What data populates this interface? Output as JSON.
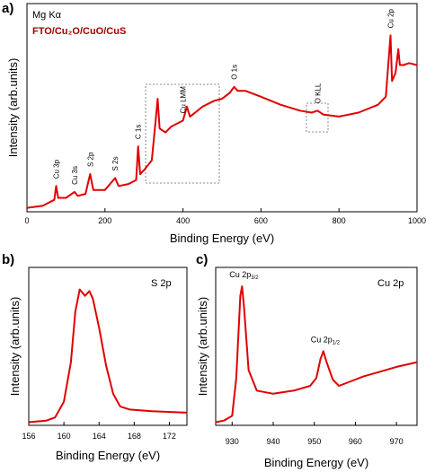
{
  "chart_data": [
    {
      "type": "line",
      "panel": "a)",
      "xlabel": "Binding Energy (eV)",
      "ylabel": "Intensity (arb.units)",
      "xlim": [
        0,
        1000
      ],
      "xticks": [
        0,
        200,
        400,
        600,
        800,
        1000
      ],
      "yticks": false,
      "source": "Mg Kα",
      "sample": "FTO/Cu₂O/CuO/CuS",
      "color": "#e00000",
      "peak_labels": [
        {
          "text": "Cu 3p",
          "x": 75
        },
        {
          "text": "Cu 3s",
          "x": 122
        },
        {
          "text": "S 2p",
          "x": 162
        },
        {
          "text": "S 2s",
          "x": 226
        },
        {
          "text": "C 1s",
          "x": 285
        },
        {
          "text": "Cu LMM",
          "x": 400
        },
        {
          "text": "O 1s",
          "x": 531
        },
        {
          "text": "O KLL",
          "x": 745
        },
        {
          "text": "Cu 2p",
          "x": 932
        }
      ],
      "x": [
        0,
        40,
        70,
        75,
        80,
        100,
        122,
        130,
        150,
        162,
        170,
        200,
        226,
        235,
        260,
        280,
        285,
        290,
        300,
        320,
        330,
        335,
        340,
        355,
        370,
        400,
        410,
        418,
        425,
        450,
        480,
        500,
        520,
        531,
        540,
        560,
        600,
        650,
        700,
        730,
        745,
        760,
        800,
        850,
        900,
        920,
        932,
        936,
        945,
        952,
        956,
        965,
        980,
        1000
      ],
      "y": [
        0.02,
        0.03,
        0.06,
        0.13,
        0.07,
        0.07,
        0.1,
        0.08,
        0.09,
        0.19,
        0.11,
        0.11,
        0.17,
        0.13,
        0.14,
        0.16,
        0.33,
        0.19,
        0.21,
        0.26,
        0.46,
        0.57,
        0.42,
        0.4,
        0.43,
        0.46,
        0.53,
        0.48,
        0.49,
        0.53,
        0.56,
        0.57,
        0.6,
        0.63,
        0.61,
        0.61,
        0.58,
        0.54,
        0.51,
        0.5,
        0.51,
        0.49,
        0.48,
        0.5,
        0.54,
        0.58,
        0.89,
        0.66,
        0.7,
        0.82,
        0.74,
        0.74,
        0.75,
        0.74
      ]
    },
    {
      "type": "line",
      "panel": "b)",
      "xlabel": "Binding Energy (eV)",
      "ylabel": "Intensity (arb.units)",
      "xlim": [
        156,
        174
      ],
      "xticks": [
        156,
        160,
        164,
        168,
        172
      ],
      "yticks": false,
      "label": "S 2p",
      "color": "#e00000",
      "x": [
        156,
        158,
        159,
        160,
        160.8,
        161.3,
        161.8,
        162.4,
        162.9,
        163.3,
        164,
        164.8,
        165.6,
        166.4,
        167.5,
        170,
        174
      ],
      "y": [
        0.02,
        0.03,
        0.05,
        0.15,
        0.4,
        0.72,
        0.86,
        0.82,
        0.85,
        0.8,
        0.62,
        0.38,
        0.2,
        0.12,
        0.1,
        0.09,
        0.08
      ]
    },
    {
      "type": "line",
      "panel": "c)",
      "xlabel": "Binding Energy (eV)",
      "ylabel": "Intensity (arb.units)",
      "xlim": [
        926,
        975
      ],
      "xticks": [
        930,
        940,
        950,
        960,
        970
      ],
      "yticks": false,
      "label": "Cu 2p",
      "color": "#e00000",
      "peak_labels": [
        {
          "text": "Cu 2p",
          "sub": "3/2",
          "x": 932.4
        },
        {
          "text": "Cu 2p",
          "sub": "1/2",
          "x": 952.2
        }
      ],
      "x": [
        926,
        928,
        930,
        931,
        932,
        932.4,
        932.9,
        934,
        936,
        940,
        945,
        949,
        950.5,
        951.5,
        952.2,
        953,
        954.5,
        956,
        958,
        962,
        966,
        970,
        975
      ],
      "y": [
        0.02,
        0.03,
        0.06,
        0.3,
        0.82,
        0.88,
        0.75,
        0.35,
        0.22,
        0.2,
        0.22,
        0.25,
        0.3,
        0.42,
        0.47,
        0.4,
        0.29,
        0.25,
        0.27,
        0.31,
        0.34,
        0.37,
        0.4
      ]
    }
  ]
}
